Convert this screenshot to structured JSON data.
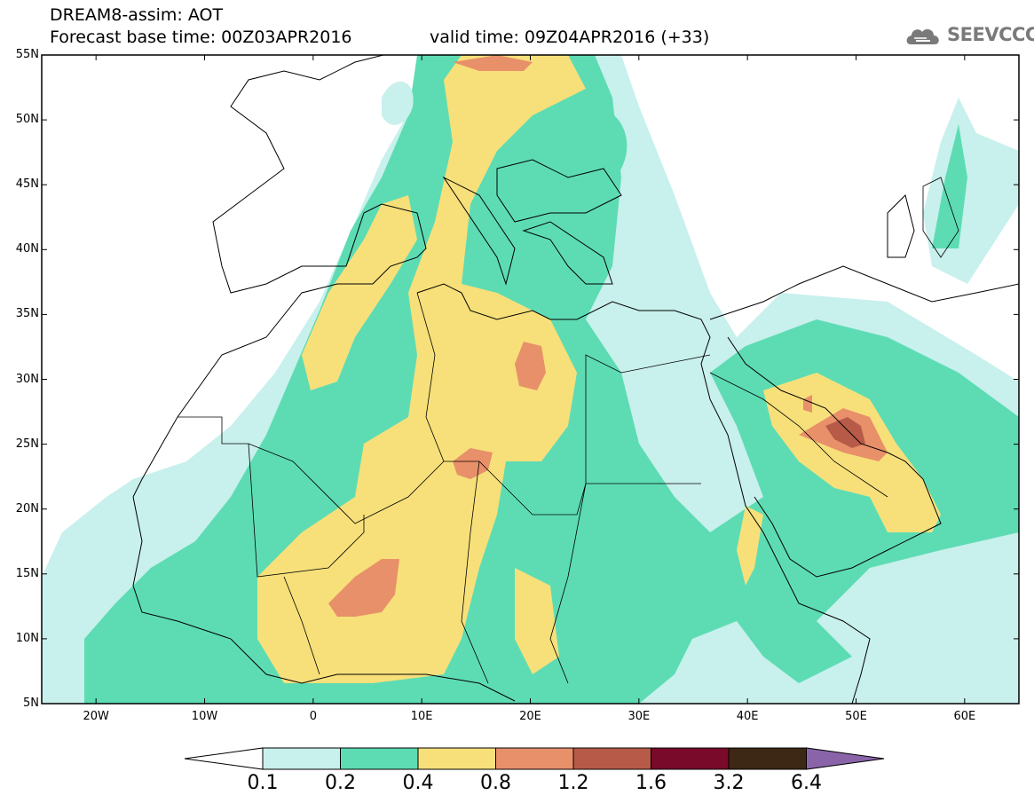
{
  "header": {
    "title_line1": "DREAM8-assim: AOT",
    "title_line2": "Forecast base time: 00Z03APR2016",
    "valid_time": "valid time: 09Z04APR2016 (+33)",
    "logo_text": "SEEVCCC",
    "logo_icon": "cloud-icon"
  },
  "axes": {
    "lat_labels": [
      "55N",
      "50N",
      "45N",
      "40N",
      "35N",
      "30N",
      "25N",
      "20N",
      "15N",
      "10N",
      "5N"
    ],
    "lon_labels": [
      "20W",
      "10W",
      "0",
      "10E",
      "20E",
      "30E",
      "40E",
      "50E",
      "60E"
    ],
    "lat_range": [
      5,
      55
    ],
    "lon_range": [
      -25,
      65
    ]
  },
  "colorbar": {
    "labels": [
      "0.1",
      "0.2",
      "0.4",
      "0.8",
      "1.2",
      "1.6",
      "3.2",
      "6.4"
    ],
    "colors": [
      "#ffffff",
      "#c8f0ec",
      "#5ddcb4",
      "#f7e07a",
      "#e8906a",
      "#b85a48",
      "#7a0a2a",
      "#3d2815",
      "#8a64a8"
    ]
  },
  "map": {
    "land_outline": "#000000",
    "ocean": "#ffffff"
  }
}
